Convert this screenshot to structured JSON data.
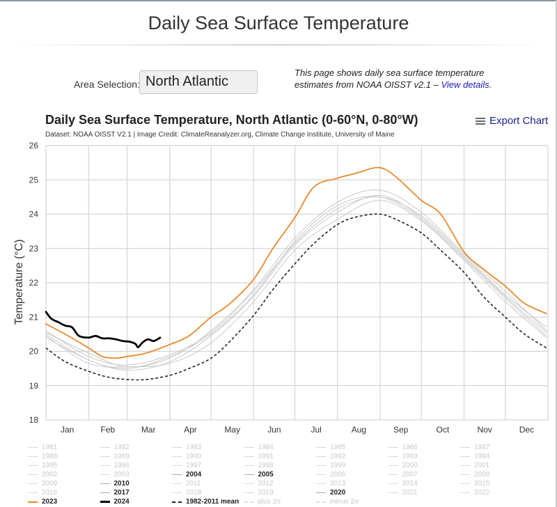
{
  "page": {
    "title": "Daily Sea Surface Temperature",
    "area_label": "Area Selection:",
    "area_value": "North Atlantic",
    "intro_text": "This page shows daily sea surface temperature estimates from NOAA OISST v2.1 – ",
    "intro_link": "View details",
    "intro_end": "."
  },
  "export": {
    "label": "Export Chart",
    "icon": "hamburger-menu-icon"
  },
  "colors": {
    "y2023": "#e8892c",
    "y2024": "#000000",
    "mean": "#222222",
    "other_years": "#c8c8c8",
    "grid": "#d4d4d4",
    "link": "#1a1ab5"
  },
  "chart_data": {
    "type": "line",
    "title": "Daily Sea Surface Temperature, North Atlantic (0-60°N, 0-80°W)",
    "subtitle": "Dataset: NOAA OISST V2.1 | Image Credit: ClimateReanalyzer.org, Climate Change Institute, University of Maine",
    "xlabel": "",
    "ylabel": "Temperature (°C)",
    "ylim": [
      18,
      26
    ],
    "yticks": [
      18,
      19,
      20,
      21,
      22,
      23,
      24,
      25,
      26
    ],
    "xlim_day_of_year": [
      1,
      366
    ],
    "month_starts": [
      1,
      32,
      60,
      91,
      121,
      152,
      182,
      213,
      244,
      274,
      305,
      335
    ],
    "xtick_labels": [
      "Jan",
      "Feb",
      "Mar",
      "Apr",
      "May",
      "Jun",
      "Jul",
      "Aug",
      "Sep",
      "Oct",
      "Nov",
      "Dec"
    ],
    "grid": true,
    "legend_position": "bottom",
    "series": [
      {
        "name": "2023",
        "style": "solid-orange",
        "x": [
          1,
          15,
          32,
          42,
          52,
          60,
          74,
          91,
          105,
          121,
          135,
          152,
          166,
          182,
          196,
          213,
          227,
          240,
          248,
          258,
          274,
          288,
          305,
          319,
          335,
          349,
          365
        ],
        "values": [
          20.8,
          20.5,
          20.1,
          19.85,
          19.8,
          19.85,
          19.95,
          20.2,
          20.45,
          21.0,
          21.4,
          22.1,
          23.0,
          23.9,
          24.8,
          25.05,
          25.2,
          25.35,
          25.3,
          25.0,
          24.4,
          24.0,
          22.9,
          22.4,
          21.9,
          21.4,
          21.1
        ]
      },
      {
        "name": "2024",
        "style": "solid-black-thick",
        "x": [
          1,
          5,
          10,
          15,
          20,
          25,
          32,
          37,
          42,
          47,
          52,
          57,
          62,
          66,
          68,
          71,
          75,
          79,
          82,
          84
        ],
        "values": [
          21.15,
          20.95,
          20.85,
          20.75,
          20.7,
          20.45,
          20.4,
          20.45,
          20.38,
          20.38,
          20.35,
          20.3,
          20.28,
          20.22,
          20.12,
          20.25,
          20.35,
          20.3,
          20.35,
          20.4
        ]
      },
      {
        "name": "1982-2011 mean",
        "style": "dashed-black",
        "x": [
          1,
          15,
          32,
          46,
          60,
          74,
          91,
          105,
          121,
          135,
          152,
          166,
          182,
          196,
          213,
          227,
          244,
          258,
          274,
          288,
          305,
          319,
          335,
          349,
          365
        ],
        "values": [
          20.1,
          19.7,
          19.42,
          19.25,
          19.18,
          19.18,
          19.3,
          19.5,
          19.8,
          20.3,
          21.05,
          21.8,
          22.55,
          23.15,
          23.7,
          23.92,
          24.0,
          23.8,
          23.45,
          22.95,
          22.3,
          21.6,
          21.0,
          20.5,
          20.1
        ]
      },
      {
        "name": "2020",
        "style": "solid-gray",
        "x": [
          1,
          32,
          60,
          91,
          121,
          152,
          182,
          213,
          244,
          274,
          305,
          335,
          365
        ],
        "values": [
          20.55,
          19.95,
          19.55,
          19.8,
          20.6,
          21.8,
          23.3,
          24.35,
          24.7,
          24.05,
          22.85,
          21.75,
          20.6
        ]
      },
      {
        "name": "2010",
        "style": "solid-gray",
        "x": [
          1,
          32,
          60,
          91,
          121,
          152,
          182,
          213,
          244,
          274,
          305,
          335,
          365
        ],
        "values": [
          20.5,
          19.75,
          19.5,
          19.85,
          20.5,
          21.65,
          23.2,
          24.25,
          24.5,
          23.85,
          22.7,
          21.55,
          20.45
        ]
      },
      {
        "name": "2017",
        "style": "solid-gray",
        "x": [
          1,
          32,
          60,
          91,
          121,
          152,
          182,
          213,
          244,
          274,
          305,
          335,
          365
        ],
        "values": [
          20.4,
          19.75,
          19.45,
          19.7,
          20.45,
          21.6,
          23.1,
          24.05,
          24.55,
          23.9,
          22.75,
          21.6,
          20.55
        ]
      },
      {
        "name": "2004",
        "style": "solid-gray",
        "x": [
          1,
          32,
          60,
          91,
          121,
          152,
          182,
          213,
          244,
          274,
          305,
          335,
          365
        ],
        "values": [
          20.45,
          19.65,
          19.55,
          19.65,
          20.25,
          21.45,
          22.95,
          23.85,
          24.4,
          23.8,
          22.65,
          21.45,
          20.4
        ]
      },
      {
        "name": "2005",
        "style": "solid-gray",
        "x": [
          1,
          32,
          60,
          91,
          121,
          152,
          182,
          213,
          244,
          274,
          305,
          335,
          365
        ],
        "values": [
          20.6,
          19.85,
          19.6,
          19.9,
          20.55,
          21.75,
          23.15,
          24.15,
          24.5,
          23.95,
          22.8,
          21.65,
          20.7
        ]
      }
    ],
    "legend_entries": [
      "1981",
      "1982",
      "1983",
      "1984",
      "1985",
      "1986",
      "1987",
      "1988",
      "1989",
      "1990",
      "1991",
      "1992",
      "1993",
      "1994",
      "1995",
      "1996",
      "1997",
      "1998",
      "1999",
      "2000",
      "2001",
      "2002",
      "2003",
      "2004",
      "2005",
      "2006",
      "2007",
      "2008",
      "2009",
      "2010",
      "2011",
      "2012",
      "2013",
      "2014",
      "2015",
      "2016",
      "2017",
      "2018",
      "2019",
      "2020",
      "2021",
      "2022",
      "2023",
      "2024",
      "1982-2011 mean",
      "plus 2σ",
      "minus 2σ"
    ],
    "legend_highlighted": [
      "2004",
      "2005",
      "2010",
      "2017",
      "2020",
      "2023",
      "2024",
      "1982-2011 mean"
    ]
  }
}
